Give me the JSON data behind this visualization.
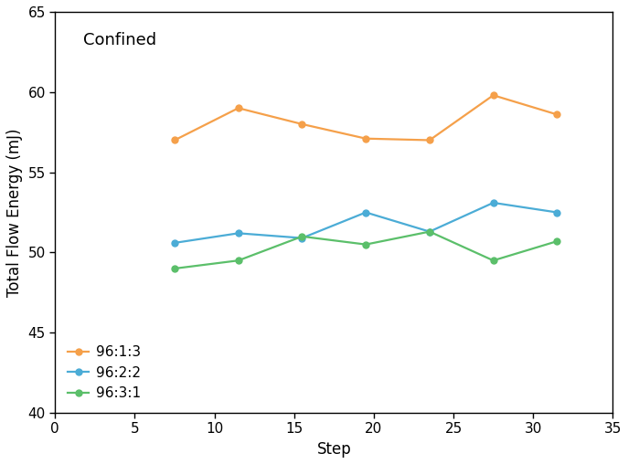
{
  "title_text": "Confined",
  "xlabel": "Step",
  "ylabel": "Total Flow Energy (mJ)",
  "xlim": [
    0,
    35
  ],
  "ylim": [
    40,
    65
  ],
  "xticks": [
    0,
    5,
    10,
    15,
    20,
    25,
    30,
    35
  ],
  "yticks": [
    40,
    45,
    50,
    55,
    60,
    65
  ],
  "series": [
    {
      "label": "96:1:3",
      "color": "#F5A04A",
      "x": [
        7.5,
        11.5,
        15.5,
        19.5,
        23.5,
        27.5,
        31.5
      ],
      "y": [
        57.0,
        59.0,
        58.0,
        57.1,
        57.0,
        59.8,
        58.6
      ]
    },
    {
      "label": "96:2:2",
      "color": "#4BACD6",
      "x": [
        7.5,
        11.5,
        15.5,
        19.5,
        23.5,
        27.5,
        31.5
      ],
      "y": [
        50.6,
        51.2,
        50.9,
        52.5,
        51.3,
        53.1,
        52.5
      ]
    },
    {
      "label": "96:3:1",
      "color": "#5BBF6A",
      "x": [
        7.5,
        11.5,
        15.5,
        19.5,
        23.5,
        27.5,
        31.5
      ],
      "y": [
        49.0,
        49.5,
        51.0,
        50.5,
        51.3,
        49.5,
        50.7
      ]
    }
  ],
  "marker": "o",
  "markersize": 5,
  "linewidth": 1.6,
  "legend_loc": "lower left",
  "legend_fontsize": 11,
  "axis_fontsize": 12,
  "tick_fontsize": 11,
  "title_fontsize": 13,
  "background_color": "#ffffff",
  "spine_linewidth": 1.0
}
